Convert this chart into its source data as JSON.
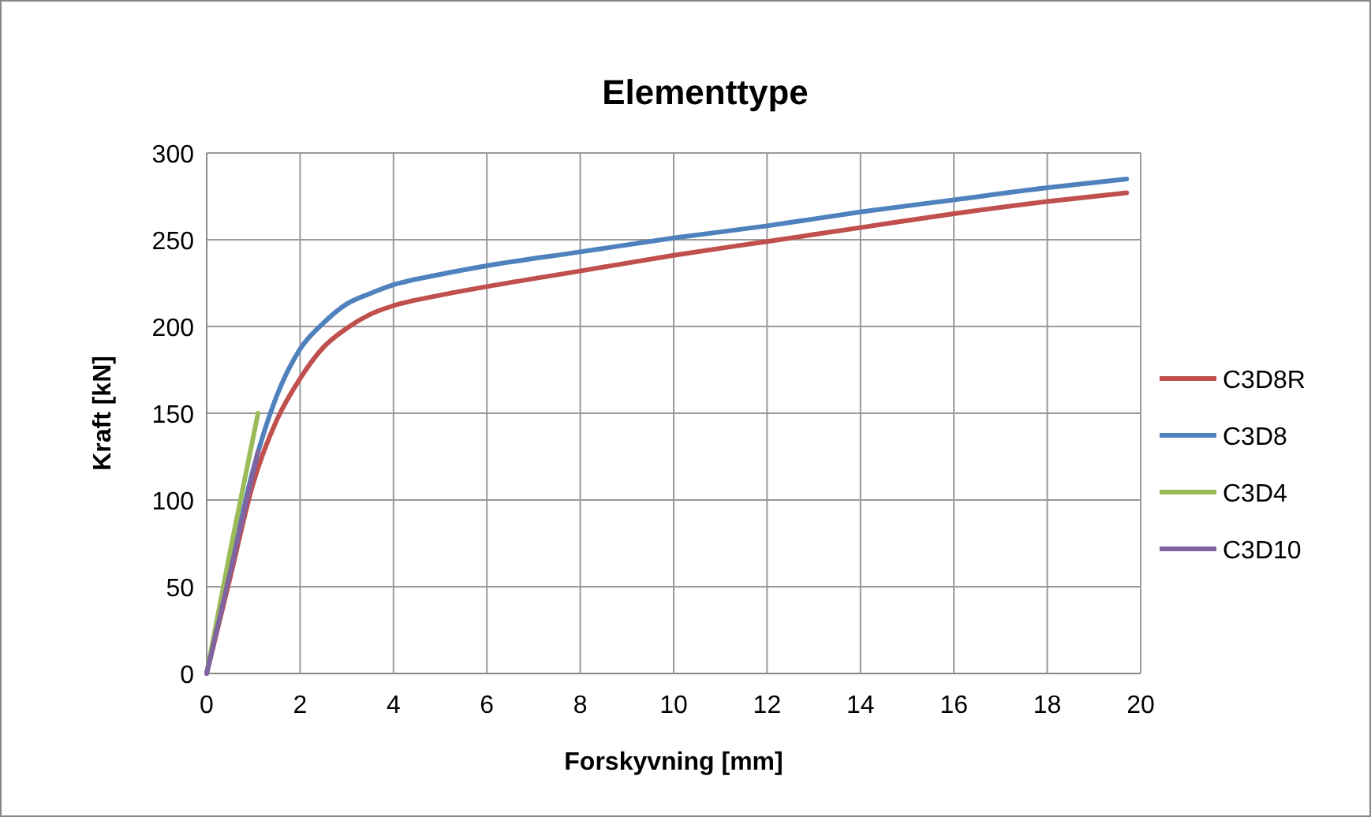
{
  "chart_data": {
    "type": "line",
    "title": "Elementtype",
    "xlabel": "Forskyvning [mm]",
    "ylabel": "Kraft [kN]",
    "xlim": [
      0,
      20
    ],
    "xticks": [
      0,
      2,
      4,
      6,
      8,
      10,
      12,
      14,
      16,
      18,
      20
    ],
    "ylim": [
      0,
      300
    ],
    "yticks": [
      0,
      50,
      100,
      150,
      200,
      250,
      300
    ],
    "grid": true,
    "legend": "right",
    "marker": "none",
    "line_style": "solid",
    "series": [
      {
        "name": "C3D8R",
        "color": "#c0504d",
        "x": [
          0,
          0.5,
          1,
          1.5,
          2,
          2.5,
          3,
          3.5,
          4,
          5,
          6,
          8,
          10,
          12,
          14,
          16,
          18,
          19.7
        ],
        "values": [
          0,
          55,
          110,
          146,
          170,
          188,
          199,
          207,
          212,
          218,
          223,
          232,
          241,
          249,
          257,
          265,
          272,
          277
        ]
      },
      {
        "name": "C3D8",
        "color": "#4f81bd",
        "x": [
          0,
          0.5,
          1,
          1.5,
          2,
          2.5,
          3,
          3.5,
          4,
          5,
          6,
          8,
          10,
          12,
          14,
          16,
          18,
          19.7
        ],
        "values": [
          0,
          60,
          118,
          160,
          187,
          202,
          213,
          219,
          224,
          230,
          235,
          243,
          251,
          258,
          266,
          273,
          280,
          285
        ]
      },
      {
        "name": "C3D4",
        "color": "#9bbb59",
        "x": [
          0,
          0.5,
          1.1
        ],
        "values": [
          0,
          70,
          150
        ]
      },
      {
        "name": "C3D10",
        "color": "#8064a2",
        "x": [
          0,
          0.5,
          1.1
        ],
        "values": [
          0,
          58,
          128
        ]
      }
    ]
  }
}
